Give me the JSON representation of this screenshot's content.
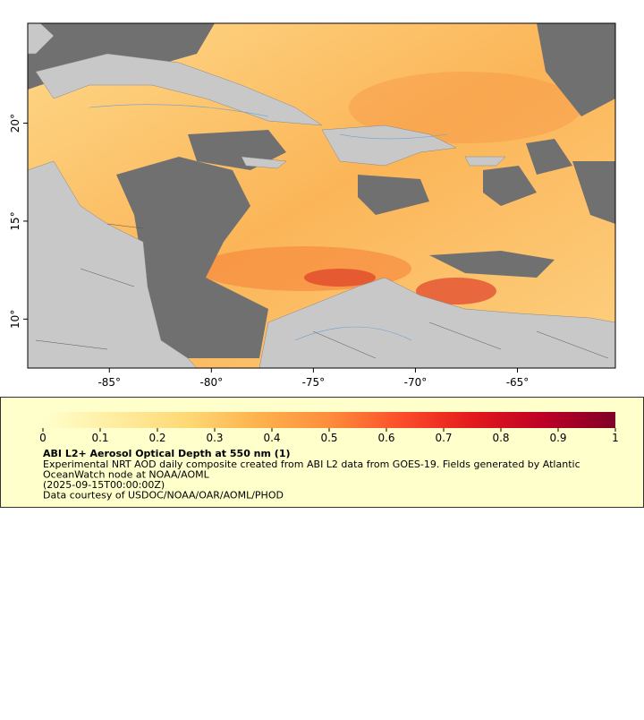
{
  "map": {
    "xlim": [
      -89,
      -60.2
    ],
    "ylim": [
      7.5,
      25.1
    ],
    "xticks": [
      {
        "value": -85,
        "label": "-85°"
      },
      {
        "value": -80,
        "label": "-80°"
      },
      {
        "value": -75,
        "label": "-75°"
      },
      {
        "value": -70,
        "label": "-70°"
      },
      {
        "value": -65,
        "label": "-65°"
      }
    ],
    "yticks": [
      {
        "value": 10,
        "label": "10°"
      },
      {
        "value": 15,
        "label": "15°"
      },
      {
        "value": 20,
        "label": "20°"
      }
    ]
  },
  "colorbar": {
    "lim": [
      0,
      1
    ],
    "ticks": [
      0,
      0.1,
      0.2,
      0.3,
      0.4,
      0.5,
      0.6,
      0.7,
      0.8,
      0.9,
      1
    ],
    "colors": [
      "#ffffcc",
      "#ffeda0",
      "#fed976",
      "#feb24c",
      "#fd8d3c",
      "#fc4e2a",
      "#e31a1c",
      "#bd0026",
      "#800026"
    ]
  },
  "legend": {
    "title": "ABI L2+ Aerosol Optical Depth at 550 nm (1)",
    "lines": [
      "Experimental NRT AOD daily composite created from ABI L2 data from GOES-19. Fields generated by Atlantic",
      "OceanWatch node at NOAA/AOML",
      "(2025-09-15T00:00:00Z)",
      "Data courtesy of USDOC/NOAA/OAR/AOML/PHOD"
    ]
  }
}
